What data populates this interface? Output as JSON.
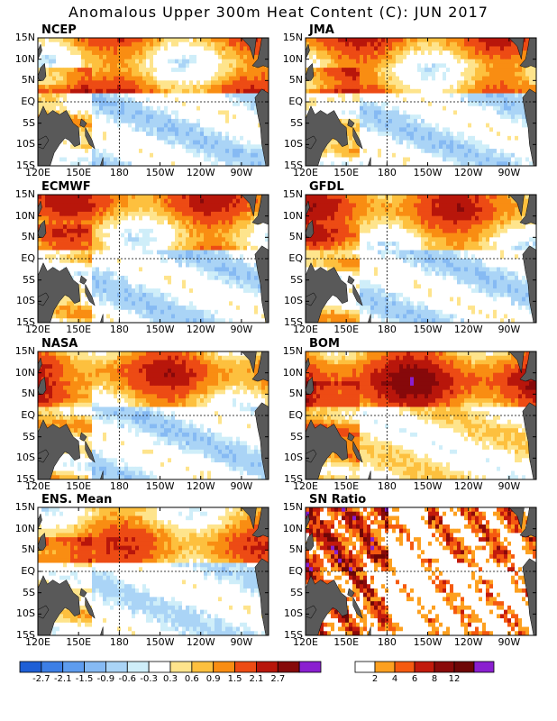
{
  "title": "Anomalous Upper 300m Heat Content (C): JUN 2017",
  "chart_data": [
    {
      "type": "heatmap",
      "panels": [
        "NCEP",
        "JMA",
        "ECMWF",
        "GFDL",
        "NASA",
        "BOM",
        "ENS. Mean",
        "SN Ratio"
      ],
      "x_ticks": [
        "120E",
        "150E",
        "180",
        "150W",
        "120W",
        "90W"
      ],
      "y_ticks": [
        "15N",
        "10N",
        "5N",
        "EQ",
        "5S",
        "10S",
        "15S"
      ],
      "xlim": [
        "120E",
        "70W"
      ],
      "ylim": [
        "15S",
        "15N"
      ]
    },
    {
      "type": "colorbar",
      "name": "anomaly",
      "labels": [
        "-2.7",
        "-2.1",
        "-1.5",
        "-0.9",
        "-0.6",
        "-0.3",
        "0.3",
        "0.6",
        "0.9",
        "1.5",
        "2.1",
        "2.7"
      ],
      "colors": [
        "#1e5fd6",
        "#3d7fe6",
        "#5e9cee",
        "#86baf3",
        "#aad4f6",
        "#cfeef9",
        "#ffffff",
        "#fee48c",
        "#fdc03e",
        "#f98d12",
        "#ed4b14",
        "#b8160b",
        "#86090a",
        "#8a1fd0"
      ]
    },
    {
      "type": "colorbar",
      "name": "sn_ratio",
      "labels": [
        "2",
        "4",
        "6",
        "8",
        "12"
      ],
      "colors": [
        "#ffffff",
        "#fda020",
        "#f55a10",
        "#c21a0c",
        "#8a0a0a",
        "#6e0606",
        "#8a1fd0"
      ]
    }
  ]
}
